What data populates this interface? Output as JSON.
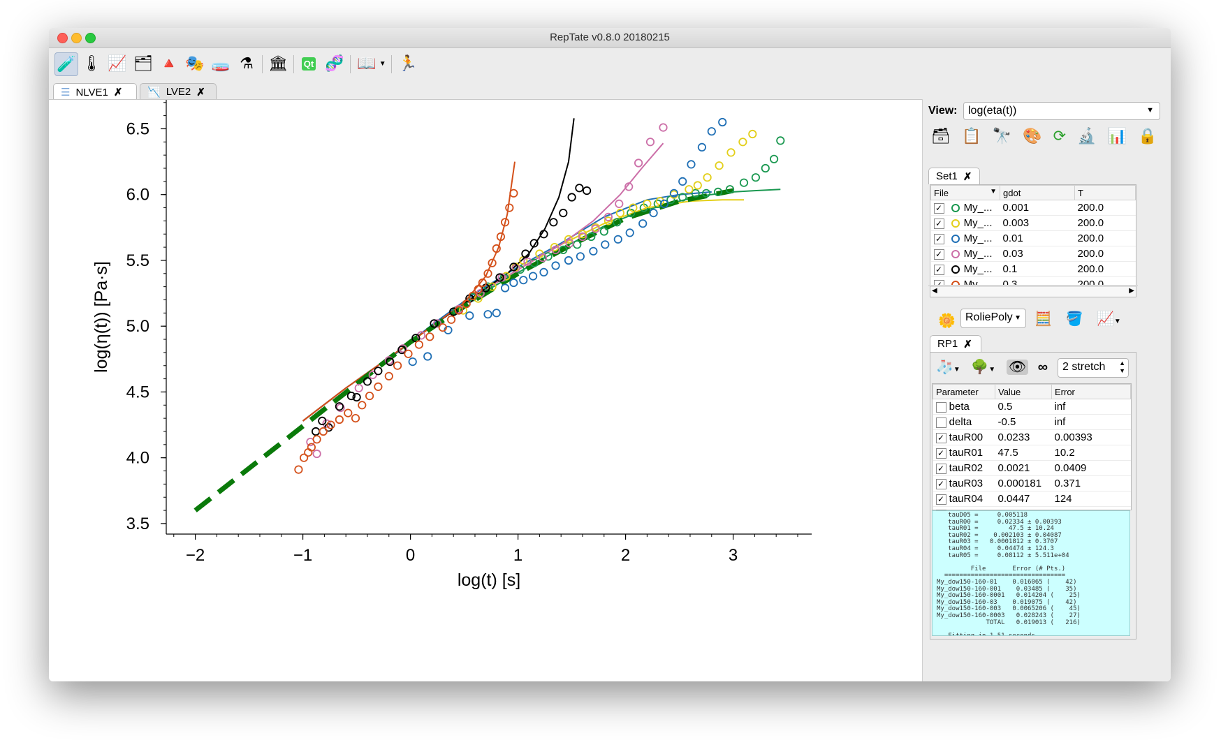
{
  "window": {
    "title": "RepTate v0.8.0 20180215"
  },
  "toolbar": {
    "icons": [
      "tensile-test-icon",
      "thermometer-icon",
      "chart-icon",
      "layers-icon",
      "pyramid-icon",
      "mask-icon",
      "tube-icon",
      "flask-icon",
      "museum-icon",
      "qt-icon",
      "react-icon",
      "book-icon",
      "runner-icon"
    ]
  },
  "tabs": [
    {
      "label": "NLVE1",
      "close": "✗"
    },
    {
      "label": "LVE2",
      "close": "✗"
    }
  ],
  "view": {
    "label": "View:",
    "value": "log(eta(t))"
  },
  "set_tab": {
    "label": "Set1",
    "close": "✗"
  },
  "files_table": {
    "headers": [
      "File",
      "gdot",
      "T"
    ],
    "rows": [
      {
        "checked": "✓",
        "name": "My_...",
        "gdot": "0.001",
        "T": "200.0",
        "color": "#1a9850"
      },
      {
        "checked": "✓",
        "name": "My_...",
        "gdot": "0.003",
        "T": "200.0",
        "color": "#e3cf1a"
      },
      {
        "checked": "✓",
        "name": "My_...",
        "gdot": "0.01",
        "T": "200.0",
        "color": "#1f6fb5"
      },
      {
        "checked": "✓",
        "name": "My_...",
        "gdot": "0.03",
        "T": "200.0",
        "color": "#cc6fa8"
      },
      {
        "checked": "✓",
        "name": "My_...",
        "gdot": "0.1",
        "T": "200.0",
        "color": "#000000"
      },
      {
        "checked": "✓",
        "name": "My_...",
        "gdot": "0.3",
        "T": "200.0",
        "color": "#d4501a"
      }
    ]
  },
  "theory": {
    "value": "RoliePoly"
  },
  "theory_tab": {
    "label": "RP1",
    "close": "✗"
  },
  "stretch": {
    "value": "2 stretch"
  },
  "params_table": {
    "headers": [
      "Parameter",
      "Value",
      "Error"
    ],
    "rows": [
      {
        "checked": "",
        "name": "beta",
        "value": "0.5",
        "error": "inf"
      },
      {
        "checked": "",
        "name": "delta",
        "value": "-0.5",
        "error": "inf"
      },
      {
        "checked": "✓",
        "name": "tauR00",
        "value": "0.0233",
        "error": "0.00393"
      },
      {
        "checked": "✓",
        "name": "tauR01",
        "value": "47.5",
        "error": "10.2"
      },
      {
        "checked": "✓",
        "name": "tauR02",
        "value": "0.0021",
        "error": "0.0409"
      },
      {
        "checked": "✓",
        "name": "tauR03",
        "value": "0.000181",
        "error": "0.371"
      },
      {
        "checked": "✓",
        "name": "tauR04",
        "value": "0.0447",
        "error": "124"
      },
      {
        "checked": "✓",
        "name": "tauR05",
        "value": "0.0811",
        "error": "5.51e+04"
      }
    ]
  },
  "log": {
    "text": "   tauD05 =     0.005118\n   tauR00 =     0.02334 ± 0.00393\n   tauR01 =        47.5 ± 10.24\n   tauR02 =    0.002103 ± 0.04087\n   tauR03 =   0.0001812 ± 0.3707\n   tauR04 =     0.04474 ± 124.3\n   tauR05 =     0.08112 ± 5.511e+04\n\n         File       Error (# Pts.)\n  ================================\nMy_dow150-160-01    0.016065 (    42)\nMy_dow150-160-001    0.03485 (    35)\nMy_dow150-160-0001   0.014204 (    25)\nMy_dow150-160-03    0.019075 (    42)\nMy_dow150-160-003   0.0065206 (    45)\nMy_dow150-160-0003   0.028243 (    27)\n             TOTAL   0.019013 (   216)\n\n---Fitting in 1.51 seconds---"
  },
  "chart_data": {
    "type": "scatter",
    "xlabel": "log(t) [s]",
    "ylabel": "log(η(t)) [Pa·s]",
    "xlim": [
      -2.27,
      3.73
    ],
    "ylim": [
      3.42,
      6.72
    ],
    "xticks": [
      -2,
      -1,
      0,
      1,
      2,
      3
    ],
    "xtick_labels": [
      "−2",
      "−1",
      "0",
      "1",
      "2",
      "3"
    ],
    "yticks": [
      3.5,
      4.0,
      4.5,
      5.0,
      5.5,
      6.0,
      6.5
    ],
    "ytick_labels": [
      "3.5",
      "4.0",
      "4.5",
      "5.0",
      "5.5",
      "6.0",
      "6.5"
    ],
    "series": [
      {
        "name": "0.001",
        "color": "#1a9850",
        "points": [
          [
            0.43,
            5.12
          ],
          [
            0.58,
            5.22
          ],
          [
            0.72,
            5.3
          ],
          [
            0.87,
            5.37
          ],
          [
            1.02,
            5.43
          ],
          [
            1.15,
            5.48
          ],
          [
            1.28,
            5.53
          ],
          [
            1.42,
            5.58
          ],
          [
            1.55,
            5.62
          ],
          [
            1.68,
            5.68
          ],
          [
            1.8,
            5.72
          ],
          [
            1.92,
            5.79
          ],
          [
            2.05,
            5.86
          ],
          [
            2.17,
            5.9
          ],
          [
            2.3,
            5.93
          ],
          [
            2.42,
            5.96
          ],
          [
            2.53,
            5.98
          ],
          [
            2.65,
            6.01
          ],
          [
            2.75,
            6.01
          ],
          [
            2.86,
            6.02
          ],
          [
            2.97,
            6.04
          ],
          [
            3.1,
            6.09
          ],
          [
            3.21,
            6.13
          ],
          [
            3.3,
            6.2
          ],
          [
            3.38,
            6.27
          ],
          [
            3.44,
            6.41
          ]
        ],
        "fit": [
          [
            -0.2,
            4.75
          ],
          [
            0.0,
            4.88
          ],
          [
            0.3,
            5.06
          ],
          [
            0.6,
            5.22
          ],
          [
            0.9,
            5.36
          ],
          [
            1.2,
            5.5
          ],
          [
            1.5,
            5.63
          ],
          [
            1.8,
            5.76
          ],
          [
            2.1,
            5.86
          ],
          [
            2.4,
            5.93
          ],
          [
            2.7,
            5.99
          ],
          [
            3.0,
            6.02
          ],
          [
            3.2,
            6.03
          ],
          [
            3.44,
            6.04
          ]
        ]
      },
      {
        "name": "0.003",
        "color": "#e3cf1a",
        "points": [
          [
            0.49,
            5.12
          ],
          [
            0.63,
            5.21
          ],
          [
            0.76,
            5.3
          ],
          [
            0.89,
            5.38
          ],
          [
            0.98,
            5.45
          ],
          [
            1.05,
            5.5
          ],
          [
            1.2,
            5.55
          ],
          [
            1.34,
            5.6
          ],
          [
            1.47,
            5.66
          ],
          [
            1.6,
            5.7
          ],
          [
            1.72,
            5.75
          ],
          [
            1.84,
            5.8
          ],
          [
            1.95,
            5.86
          ],
          [
            2.07,
            5.9
          ],
          [
            2.2,
            5.93
          ],
          [
            2.32,
            5.95
          ],
          [
            2.45,
            6.0
          ],
          [
            2.59,
            6.04
          ],
          [
            2.67,
            6.07
          ],
          [
            2.76,
            6.13
          ],
          [
            2.87,
            6.22
          ],
          [
            2.98,
            6.32
          ],
          [
            3.09,
            6.4
          ],
          [
            3.18,
            6.46
          ]
        ],
        "fit": [
          [
            -0.2,
            4.75
          ],
          [
            0.2,
            5.0
          ],
          [
            0.6,
            5.23
          ],
          [
            1.0,
            5.43
          ],
          [
            1.4,
            5.62
          ],
          [
            1.8,
            5.78
          ],
          [
            2.2,
            5.9
          ],
          [
            2.6,
            5.95
          ],
          [
            2.9,
            5.96
          ],
          [
            3.1,
            5.96
          ]
        ]
      },
      {
        "name": "0.01",
        "color": "#1f6fb5",
        "points": [
          [
            0.02,
            4.73
          ],
          [
            0.16,
            4.77
          ],
          [
            0.35,
            4.97
          ],
          [
            0.55,
            5.08
          ],
          [
            0.72,
            5.09
          ],
          [
            0.8,
            5.1
          ],
          [
            0.88,
            5.29
          ],
          [
            0.96,
            5.33
          ],
          [
            1.05,
            5.35
          ],
          [
            1.14,
            5.38
          ],
          [
            1.24,
            5.41
          ],
          [
            1.35,
            5.46
          ],
          [
            1.47,
            5.5
          ],
          [
            1.58,
            5.53
          ],
          [
            1.7,
            5.57
          ],
          [
            1.81,
            5.62
          ],
          [
            1.93,
            5.66
          ],
          [
            2.04,
            5.71
          ],
          [
            2.16,
            5.78
          ],
          [
            2.26,
            5.86
          ],
          [
            2.36,
            5.93
          ],
          [
            2.45,
            6.01
          ],
          [
            2.53,
            6.1
          ],
          [
            2.61,
            6.23
          ],
          [
            2.71,
            6.36
          ],
          [
            2.8,
            6.48
          ],
          [
            2.9,
            6.55
          ]
        ],
        "fit": [
          [
            -0.2,
            4.75
          ],
          [
            0.2,
            5.01
          ],
          [
            0.6,
            5.25
          ],
          [
            1.0,
            5.45
          ],
          [
            1.4,
            5.63
          ],
          [
            1.8,
            5.83
          ],
          [
            2.2,
            5.96
          ],
          [
            2.5,
            6.0
          ],
          [
            2.8,
            6.02
          ]
        ]
      },
      {
        "name": "0.03",
        "color": "#cc6fa8",
        "points": [
          [
            -0.93,
            4.12
          ],
          [
            -0.87,
            4.03
          ],
          [
            -0.78,
            4.26
          ],
          [
            -0.65,
            4.38
          ],
          [
            -0.48,
            4.53
          ],
          [
            -0.35,
            4.63
          ],
          [
            -0.2,
            4.74
          ],
          [
            -0.07,
            4.83
          ],
          [
            0.1,
            4.93
          ],
          [
            0.25,
            5.02
          ],
          [
            0.45,
            5.13
          ],
          [
            0.65,
            5.25
          ],
          [
            0.85,
            5.37
          ],
          [
            0.98,
            5.44
          ],
          [
            1.09,
            5.49
          ],
          [
            1.23,
            5.52
          ],
          [
            1.35,
            5.58
          ],
          [
            1.48,
            5.63
          ],
          [
            1.6,
            5.68
          ],
          [
            1.72,
            5.74
          ],
          [
            1.84,
            5.83
          ],
          [
            1.94,
            5.93
          ],
          [
            2.03,
            6.06
          ],
          [
            2.12,
            6.24
          ],
          [
            2.23,
            6.4
          ],
          [
            2.35,
            6.51
          ]
        ],
        "fit": [
          [
            -1.0,
            4.28
          ],
          [
            -0.6,
            4.53
          ],
          [
            -0.2,
            4.76
          ],
          [
            0.2,
            5.0
          ],
          [
            0.6,
            5.23
          ],
          [
            1.0,
            5.43
          ],
          [
            1.4,
            5.62
          ],
          [
            1.7,
            5.8
          ],
          [
            1.95,
            6.0
          ],
          [
            2.15,
            6.2
          ],
          [
            2.35,
            6.39
          ]
        ]
      },
      {
        "name": "0.1",
        "color": "#000000",
        "points": [
          [
            -0.88,
            4.2
          ],
          [
            -0.82,
            4.28
          ],
          [
            -0.76,
            4.23
          ],
          [
            -0.66,
            4.39
          ],
          [
            -0.55,
            4.47
          ],
          [
            -0.5,
            4.46
          ],
          [
            -0.4,
            4.58
          ],
          [
            -0.3,
            4.66
          ],
          [
            -0.19,
            4.73
          ],
          [
            -0.08,
            4.82
          ],
          [
            0.05,
            4.91
          ],
          [
            0.22,
            5.02
          ],
          [
            0.4,
            5.11
          ],
          [
            0.55,
            5.21
          ],
          [
            0.7,
            5.29
          ],
          [
            0.83,
            5.37
          ],
          [
            0.96,
            5.45
          ],
          [
            1.07,
            5.55
          ],
          [
            1.15,
            5.63
          ],
          [
            1.24,
            5.7
          ],
          [
            1.33,
            5.79
          ],
          [
            1.42,
            5.86
          ],
          [
            1.5,
            5.98
          ],
          [
            1.57,
            6.05
          ],
          [
            1.64,
            6.03
          ]
        ],
        "fit": [
          [
            -1.0,
            4.28
          ],
          [
            -0.6,
            4.53
          ],
          [
            -0.2,
            4.76
          ],
          [
            0.2,
            5.0
          ],
          [
            0.6,
            5.23
          ],
          [
            0.9,
            5.4
          ],
          [
            1.1,
            5.55
          ],
          [
            1.25,
            5.74
          ],
          [
            1.38,
            5.98
          ],
          [
            1.47,
            6.25
          ],
          [
            1.52,
            6.58
          ]
        ]
      },
      {
        "name": "0.3",
        "color": "#d4501a",
        "points": [
          [
            -1.04,
            3.91
          ],
          [
            -0.99,
            4.0
          ],
          [
            -0.95,
            4.04
          ],
          [
            -0.92,
            4.08
          ],
          [
            -0.87,
            4.14
          ],
          [
            -0.81,
            4.2
          ],
          [
            -0.74,
            4.25
          ],
          [
            -0.66,
            4.29
          ],
          [
            -0.58,
            4.34
          ],
          [
            -0.51,
            4.3
          ],
          [
            -0.45,
            4.4
          ],
          [
            -0.38,
            4.47
          ],
          [
            -0.3,
            4.54
          ],
          [
            -0.2,
            4.62
          ],
          [
            -0.12,
            4.7
          ],
          [
            -0.02,
            4.79
          ],
          [
            0.08,
            4.86
          ],
          [
            0.18,
            4.92
          ],
          [
            0.3,
            4.99
          ],
          [
            0.38,
            5.05
          ],
          [
            0.45,
            5.12
          ],
          [
            0.52,
            5.17
          ],
          [
            0.58,
            5.23
          ],
          [
            0.63,
            5.28
          ],
          [
            0.67,
            5.33
          ],
          [
            0.72,
            5.4
          ],
          [
            0.76,
            5.48
          ],
          [
            0.8,
            5.59
          ],
          [
            0.84,
            5.68
          ],
          [
            0.88,
            5.79
          ],
          [
            0.92,
            5.9
          ],
          [
            0.96,
            6.01
          ]
        ],
        "fit": [
          [
            -1.0,
            4.28
          ],
          [
            -0.6,
            4.53
          ],
          [
            -0.2,
            4.76
          ],
          [
            0.2,
            5.0
          ],
          [
            0.5,
            5.18
          ],
          [
            0.7,
            5.38
          ],
          [
            0.82,
            5.6
          ],
          [
            0.9,
            5.85
          ],
          [
            0.97,
            6.25
          ]
        ]
      }
    ],
    "dashed_line": {
      "color": "#0a7a0a",
      "points": [
        [
          -2.0,
          3.6
        ],
        [
          -1.0,
          4.24
        ],
        [
          0.0,
          4.88
        ],
        [
          0.5,
          5.15
        ],
        [
          1.0,
          5.4
        ],
        [
          1.5,
          5.62
        ],
        [
          2.0,
          5.82
        ],
        [
          2.5,
          5.95
        ],
        [
          3.0,
          6.03
        ]
      ]
    }
  }
}
